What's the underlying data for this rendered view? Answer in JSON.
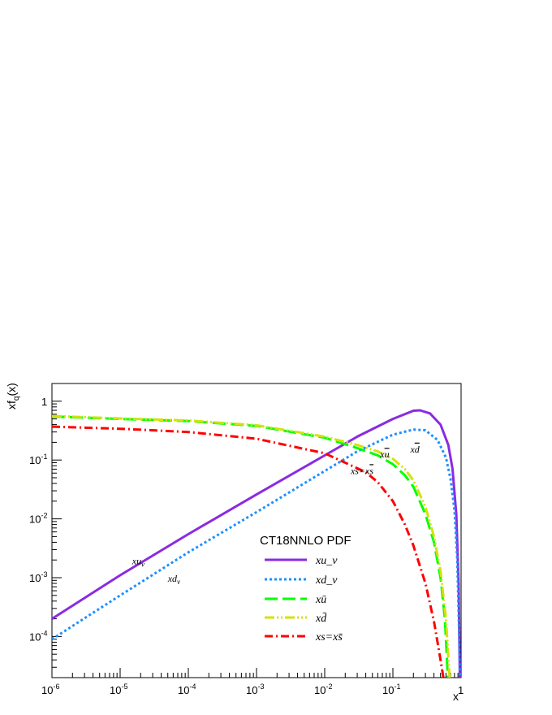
{
  "chart_data": {
    "type": "line",
    "title": "",
    "xlabel": "x",
    "ylabel": "xf_q(x)",
    "x_scale": "log",
    "y_scale": "log",
    "xlim": [
      1e-06,
      1
    ],
    "ylim": [
      2e-05,
      2
    ],
    "grid": false,
    "legend": {
      "title": "CT18NNLO PDF",
      "placement": "center-right"
    },
    "x_ticks": [
      {
        "base": "10",
        "exp": "-6",
        "value": 1e-06
      },
      {
        "base": "10",
        "exp": "-5",
        "value": 1e-05
      },
      {
        "base": "10",
        "exp": "-4",
        "value": 0.0001
      },
      {
        "base": "10",
        "exp": "-3",
        "value": 0.001
      },
      {
        "base": "10",
        "exp": "-2",
        "value": 0.01
      },
      {
        "base": "10",
        "exp": "-1",
        "value": 0.1
      },
      {
        "base": "1",
        "exp": "",
        "value": 1
      }
    ],
    "y_ticks": [
      {
        "base": "10",
        "exp": "-4",
        "value": 0.0001
      },
      {
        "base": "10",
        "exp": "-3",
        "value": 0.001
      },
      {
        "base": "10",
        "exp": "-2",
        "value": 0.01
      },
      {
        "base": "10",
        "exp": "-1",
        "value": 0.1
      },
      {
        "base": "1",
        "exp": "",
        "value": 1
      }
    ],
    "series": [
      {
        "name": "xu_v",
        "color": "#8a2be2",
        "dash": "solid",
        "x": [
          1e-06,
          1e-05,
          0.0001,
          0.001,
          0.01,
          0.03,
          0.1,
          0.2,
          0.25,
          0.35,
          0.5,
          0.65,
          0.75,
          0.85,
          0.92,
          0.96
        ],
        "y": [
          0.0002,
          0.0011,
          0.0055,
          0.026,
          0.12,
          0.25,
          0.5,
          0.69,
          0.7,
          0.62,
          0.4,
          0.18,
          0.07,
          0.012,
          0.0008,
          2e-05
        ]
      },
      {
        "name": "xd_v",
        "color": "#1e90ff",
        "dash": "dotted",
        "x": [
          1e-06,
          1e-05,
          0.0001,
          0.001,
          0.01,
          0.03,
          0.1,
          0.2,
          0.3,
          0.45,
          0.6,
          0.7,
          0.8,
          0.88,
          0.93,
          0.96
        ],
        "y": [
          9e-05,
          0.0005,
          0.0027,
          0.013,
          0.065,
          0.14,
          0.27,
          0.33,
          0.32,
          0.22,
          0.11,
          0.048,
          0.014,
          0.002,
          0.00015,
          2e-05
        ]
      },
      {
        "name": "xū",
        "color": "#00ff00",
        "dash": "long-dash",
        "x": [
          1e-06,
          1e-05,
          0.0001,
          0.001,
          0.01,
          0.03,
          0.06,
          0.1,
          0.15,
          0.2,
          0.3,
          0.4,
          0.5,
          0.58,
          0.64
        ],
        "y": [
          0.55,
          0.5,
          0.46,
          0.38,
          0.24,
          0.16,
          0.12,
          0.085,
          0.055,
          0.035,
          0.012,
          0.004,
          0.001,
          0.0002,
          2e-05
        ]
      },
      {
        "name": "xd̄",
        "color": "#d4e20a",
        "dash": "dash-dot-dot",
        "x": [
          1e-06,
          1e-05,
          0.0001,
          0.001,
          0.01,
          0.03,
          0.06,
          0.1,
          0.15,
          0.2,
          0.3,
          0.4,
          0.5,
          0.6,
          0.68
        ],
        "y": [
          0.56,
          0.51,
          0.47,
          0.39,
          0.25,
          0.18,
          0.14,
          0.105,
          0.07,
          0.045,
          0.016,
          0.005,
          0.0013,
          0.0002,
          2e-05
        ]
      },
      {
        "name": "xs=xs̄",
        "color": "#ff0000",
        "dash": "dash-dot",
        "x": [
          1e-06,
          1e-05,
          0.0001,
          0.001,
          0.01,
          0.02,
          0.04,
          0.06,
          0.1,
          0.15,
          0.2,
          0.3,
          0.4,
          0.5,
          0.55
        ],
        "y": [
          0.37,
          0.34,
          0.3,
          0.23,
          0.13,
          0.09,
          0.062,
          0.042,
          0.02,
          0.008,
          0.0035,
          0.0008,
          0.00018,
          4e-05,
          2e-05
        ]
      }
    ],
    "annotations": [
      {
        "id": "uv",
        "text": "xu",
        "sub": "v",
        "x": 1.5e-05,
        "y": 0.0017
      },
      {
        "id": "dv",
        "text": "xd",
        "sub": "v",
        "x": 5e-05,
        "y": 0.00085
      },
      {
        "id": "ubar",
        "text": "x",
        "bar": "u",
        "x": 0.065,
        "y": 0.11
      },
      {
        "id": "dbar",
        "text": "x",
        "bar": "d",
        "x": 0.18,
        "y": 0.135
      },
      {
        "id": "s",
        "text": "xs=x",
        "bar": "s",
        "x": 0.024,
        "y": 0.058
      }
    ]
  }
}
